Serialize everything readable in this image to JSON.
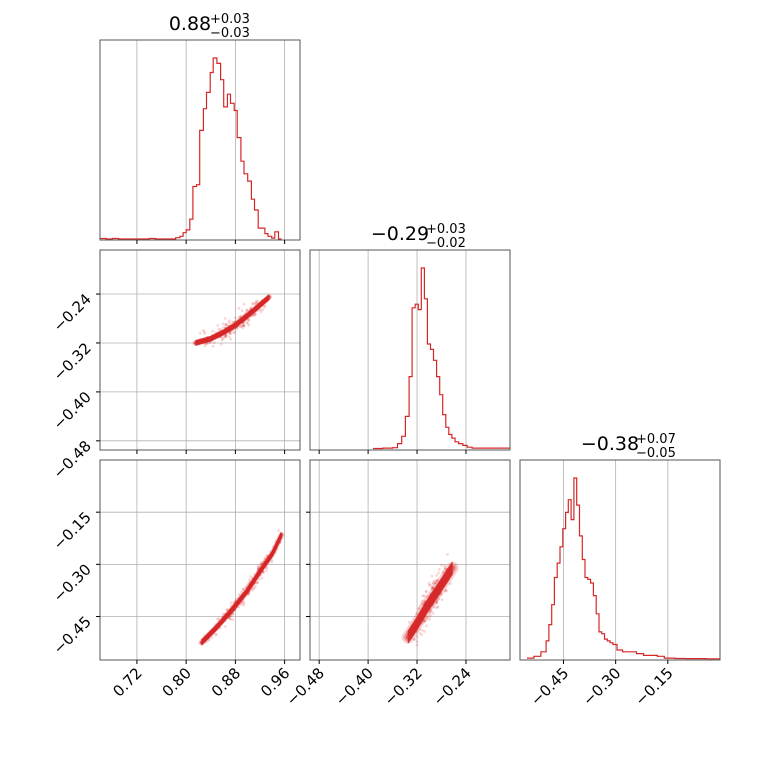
{
  "chart_data": {
    "type": "corner",
    "color": "#d62728",
    "parameters": [
      {
        "title": {
          "median": "0.88",
          "plus": "+0.03",
          "minus": "−0.03"
        },
        "range": [
          0.66,
          0.985
        ],
        "ticks": [
          0.72,
          0.8,
          0.88,
          0.96
        ],
        "tick_labels": [
          "0.72",
          "0.80",
          "0.88",
          "0.96"
        ]
      },
      {
        "title": {
          "median": "−0.29",
          "plus": "+0.03",
          "minus": "−0.02"
        },
        "range": [
          -0.495,
          -0.168
        ],
        "ticks": [
          -0.48,
          -0.4,
          -0.32,
          -0.24
        ],
        "tick_labels": [
          "−0.48",
          "−0.40",
          "−0.32",
          "−0.24"
        ]
      },
      {
        "title": {
          "median": "−0.38",
          "plus": "+0.07",
          "minus": "−0.05"
        },
        "range": [
          -0.575,
          -0.0
        ],
        "ticks": [
          -0.45,
          -0.3,
          -0.15
        ],
        "tick_labels": [
          "−0.45",
          "−0.30",
          "−0.15"
        ]
      }
    ],
    "histograms": [
      {
        "bins": [
          [
            0.66,
            0.003
          ],
          [
            0.665,
            0.003
          ],
          [
            0.67,
            0.0
          ],
          [
            0.68,
            0.003
          ],
          [
            0.69,
            0.0
          ],
          [
            0.74,
            0.003
          ],
          [
            0.75,
            0.0
          ],
          [
            0.783,
            0.007
          ],
          [
            0.79,
            0.015
          ],
          [
            0.795,
            0.035
          ],
          [
            0.8,
            0.05
          ],
          [
            0.806,
            0.11
          ],
          [
            0.811,
            0.29
          ],
          [
            0.817,
            0.3
          ],
          [
            0.822,
            0.6
          ],
          [
            0.828,
            0.72
          ],
          [
            0.833,
            0.81
          ],
          [
            0.839,
            0.92
          ],
          [
            0.844,
            1.0
          ],
          [
            0.85,
            0.97
          ],
          [
            0.856,
            0.88
          ],
          [
            0.861,
            0.73
          ],
          [
            0.867,
            0.8
          ],
          [
            0.872,
            0.75
          ],
          [
            0.878,
            0.71
          ],
          [
            0.883,
            0.56
          ],
          [
            0.889,
            0.43
          ],
          [
            0.894,
            0.36
          ],
          [
            0.9,
            0.32
          ],
          [
            0.906,
            0.22
          ],
          [
            0.911,
            0.16
          ],
          [
            0.917,
            0.06
          ],
          [
            0.922,
            0.06
          ],
          [
            0.928,
            0.03
          ],
          [
            0.933,
            0.015
          ],
          [
            0.939,
            0.005
          ],
          [
            0.944,
            0.04
          ],
          [
            0.95,
            0.0
          ]
        ],
        "end": 0.955
      },
      {
        "bins": [
          [
            -0.392,
            0.003
          ],
          [
            -0.376,
            0.005
          ],
          [
            -0.36,
            0.007
          ],
          [
            -0.352,
            0.03
          ],
          [
            -0.345,
            0.07
          ],
          [
            -0.339,
            0.18
          ],
          [
            -0.333,
            0.4
          ],
          [
            -0.328,
            0.78
          ],
          [
            -0.323,
            0.8
          ],
          [
            -0.318,
            0.77
          ],
          [
            -0.313,
            1.0
          ],
          [
            -0.308,
            0.83
          ],
          [
            -0.303,
            0.58
          ],
          [
            -0.298,
            0.55
          ],
          [
            -0.293,
            0.49
          ],
          [
            -0.288,
            0.4
          ],
          [
            -0.283,
            0.3
          ],
          [
            -0.278,
            0.19
          ],
          [
            -0.273,
            0.12
          ],
          [
            -0.268,
            0.08
          ],
          [
            -0.263,
            0.06
          ],
          [
            -0.258,
            0.04
          ],
          [
            -0.252,
            0.03
          ],
          [
            -0.245,
            0.02
          ],
          [
            -0.238,
            0.01
          ],
          [
            -0.23,
            0.005
          ]
        ],
        "end": -0.168
      },
      {
        "bins": [
          [
            -0.555,
            0.005
          ],
          [
            -0.535,
            0.015
          ],
          [
            -0.515,
            0.04
          ],
          [
            -0.5,
            0.1
          ],
          [
            -0.492,
            0.19
          ],
          [
            -0.484,
            0.3
          ],
          [
            -0.476,
            0.45
          ],
          [
            -0.468,
            0.53
          ],
          [
            -0.46,
            0.62
          ],
          [
            -0.452,
            0.72
          ],
          [
            -0.444,
            0.81
          ],
          [
            -0.436,
            0.88
          ],
          [
            -0.428,
            0.77
          ],
          [
            -0.42,
            1.0
          ],
          [
            -0.412,
            0.85
          ],
          [
            -0.404,
            0.68
          ],
          [
            -0.396,
            0.55
          ],
          [
            -0.388,
            0.45
          ],
          [
            -0.38,
            0.44
          ],
          [
            -0.372,
            0.42
          ],
          [
            -0.364,
            0.35
          ],
          [
            -0.356,
            0.25
          ],
          [
            -0.348,
            0.15
          ],
          [
            -0.34,
            0.14
          ],
          [
            -0.332,
            0.11
          ],
          [
            -0.324,
            0.1
          ],
          [
            -0.316,
            0.09
          ],
          [
            -0.308,
            0.08
          ],
          [
            -0.296,
            0.05
          ],
          [
            -0.28,
            0.04
          ],
          [
            -0.26,
            0.04
          ],
          [
            -0.24,
            0.03
          ],
          [
            -0.22,
            0.02
          ],
          [
            -0.2,
            0.02
          ],
          [
            -0.18,
            0.015
          ],
          [
            -0.16,
            0.005
          ],
          [
            -0.13,
            0.003
          ],
          [
            -0.1,
            0.002
          ],
          [
            -0.07,
            0.002
          ],
          [
            -0.04,
            0.001
          ]
        ],
        "end": -0.0
      }
    ],
    "pairs": [
      {
        "i": 1,
        "j": 0,
        "ridge": [
          [
            0.815,
            -0.32
          ],
          [
            0.84,
            -0.313
          ],
          [
            0.86,
            -0.303
          ],
          [
            0.88,
            -0.291
          ],
          [
            0.9,
            -0.275
          ],
          [
            0.92,
            -0.258
          ],
          [
            0.935,
            -0.245
          ]
        ],
        "widths": [
          0.012,
          0.008,
          0.005
        ],
        "scatter_sd": 0.015
      },
      {
        "i": 2,
        "j": 0,
        "ridge": [
          [
            0.825,
            -0.525
          ],
          [
            0.85,
            -0.48
          ],
          [
            0.875,
            -0.43
          ],
          [
            0.9,
            -0.375
          ],
          [
            0.92,
            -0.32
          ],
          [
            0.94,
            -0.27
          ],
          [
            0.955,
            -0.215
          ]
        ],
        "widths": [
          0.022,
          0.014,
          0.007
        ],
        "scatter_sd": 0.025
      },
      {
        "i": 2,
        "j": 1,
        "ridge": [
          [
            -0.335,
            -0.51
          ],
          [
            -0.32,
            -0.47
          ],
          [
            -0.305,
            -0.425
          ],
          [
            -0.29,
            -0.385
          ],
          [
            -0.275,
            -0.345
          ],
          [
            -0.262,
            -0.31
          ]
        ],
        "widths": [
          0.045,
          0.03,
          0.015
        ],
        "scatter_sd": 0.05
      }
    ]
  }
}
